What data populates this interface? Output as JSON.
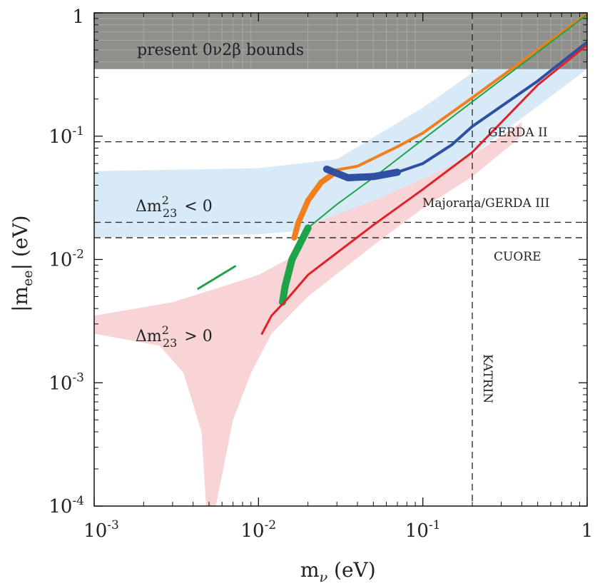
{
  "chart_data": {
    "type": "line",
    "title": "",
    "xlabel": "m_ν (eV)",
    "xlabel_main": "m",
    "xlabel_sub": "ν",
    "xlabel_units": " (eV)",
    "ylabel": "|m_ee| (eV)",
    "ylabel_main": "|m",
    "ylabel_sub": "ee",
    "ylabel_units": "| (eV)",
    "xscale": "log",
    "yscale": "log",
    "xlim": [
      0.001,
      1
    ],
    "ylim": [
      0.0001,
      1
    ],
    "xticks": [
      {
        "base": "10",
        "exp": "-3"
      },
      {
        "base": "10",
        "exp": "-2"
      },
      {
        "base": "10",
        "exp": "-1"
      },
      {
        "base": "1",
        "exp": ""
      }
    ],
    "yticks": [
      {
        "base": "10",
        "exp": "-4"
      },
      {
        "base": "10",
        "exp": "-3"
      },
      {
        "base": "10",
        "exp": "-2"
      },
      {
        "base": "10",
        "exp": "-1"
      },
      {
        "base": "1",
        "exp": ""
      }
    ],
    "excluded_region": {
      "label": "present 0ν2β bounds",
      "ymin": 0.35,
      "color": "#8f8f8c"
    },
    "region_labels": {
      "inverted": {
        "text": "Δm",
        "sup": "2",
        "sub": "23",
        "rel": "< 0"
      },
      "normal": {
        "text": "Δm",
        "sup": "2",
        "sub": "23",
        "rel": "> 0"
      }
    },
    "sensitivity_lines": [
      {
        "name": "GERDA II",
        "m_ee": 0.09,
        "orientation": "horizontal"
      },
      {
        "name": "Majorana/GERDA III",
        "m_ee": 0.02,
        "orientation": "horizontal"
      },
      {
        "name": "CUORE",
        "m_ee": 0.015,
        "orientation": "horizontal"
      },
      {
        "name": "KATRIN",
        "m_nu": 0.2,
        "orientation": "vertical"
      }
    ],
    "bands": [
      {
        "name": "inverted hierarchy (Δm²_23 < 0)",
        "color": "#d8eaf8",
        "upper": [
          [
            0.001,
            0.052
          ],
          [
            0.01,
            0.055
          ],
          [
            0.03,
            0.065
          ],
          [
            0.1,
            0.17
          ],
          [
            0.3,
            0.48
          ],
          [
            1,
            0.95
          ]
        ],
        "lower": [
          [
            1,
            0.35
          ],
          [
            0.3,
            0.105
          ],
          [
            0.1,
            0.035
          ],
          [
            0.03,
            0.018
          ],
          [
            0.01,
            0.016
          ],
          [
            0.001,
            0.015
          ]
        ]
      },
      {
        "name": "normal hierarchy (Δm²_23 > 0)",
        "color": "#f8d4d6",
        "upper": [
          [
            0.001,
            0.0035
          ],
          [
            0.003,
            0.0045
          ],
          [
            0.006,
            0.006
          ],
          [
            0.01,
            0.0075
          ],
          [
            0.015,
            0.01
          ],
          [
            0.02,
            0.019
          ],
          [
            0.05,
            0.03
          ],
          [
            0.1,
            0.045
          ],
          [
            0.2,
            0.07
          ],
          [
            0.4,
            0.13
          ]
        ],
        "lower": [
          [
            0.4,
            0.1
          ],
          [
            0.2,
            0.047
          ],
          [
            0.1,
            0.026
          ],
          [
            0.05,
            0.013
          ],
          [
            0.02,
            0.005
          ],
          [
            0.012,
            0.0025
          ],
          [
            0.009,
            0.0012
          ],
          [
            0.007,
            0.0005
          ],
          [
            0.0055,
            0.0001
          ],
          [
            0.0048,
            0.0001
          ],
          [
            0.0045,
            0.0004
          ],
          [
            0.0035,
            0.0012
          ],
          [
            0.0025,
            0.002
          ],
          [
            0.001,
            0.0025
          ]
        ]
      }
    ],
    "series": [
      {
        "name": "orange",
        "color": "#f07f1c",
        "width": 4,
        "points": [
          [
            0.027,
            0.052
          ],
          [
            0.04,
            0.057
          ],
          [
            0.07,
            0.082
          ],
          [
            0.1,
            0.106
          ],
          [
            0.2,
            0.205
          ],
          [
            0.5,
            0.5
          ],
          [
            1,
            0.98
          ]
        ],
        "branch": [
          [
            0.0165,
            0.015
          ],
          [
            0.0175,
            0.02
          ],
          [
            0.02,
            0.03
          ],
          [
            0.024,
            0.042
          ],
          [
            0.03,
            0.052
          ]
        ]
      },
      {
        "name": "green",
        "color": "#1fa34a",
        "width": 2,
        "points": [
          [
            0.014,
            0.0045
          ],
          [
            0.0145,
            0.006
          ],
          [
            0.016,
            0.01
          ],
          [
            0.02,
            0.018
          ],
          [
            0.03,
            0.028
          ],
          [
            0.05,
            0.046
          ],
          [
            0.1,
            0.094
          ],
          [
            0.2,
            0.19
          ],
          [
            0.5,
            0.48
          ],
          [
            1,
            0.97
          ]
        ],
        "thick_segment": [
          [
            0.014,
            0.0045
          ],
          [
            0.0145,
            0.006
          ],
          [
            0.016,
            0.01
          ],
          [
            0.02,
            0.018
          ]
        ],
        "island": [
          [
            0.0043,
            0.0058
          ],
          [
            0.0072,
            0.0088
          ]
        ]
      },
      {
        "name": "blue",
        "color": "#2f4fa1",
        "width": 4,
        "points": [
          [
            0.026,
            0.054
          ],
          [
            0.035,
            0.046
          ],
          [
            0.05,
            0.047
          ],
          [
            0.07,
            0.051
          ],
          [
            0.1,
            0.06
          ],
          [
            0.15,
            0.085
          ],
          [
            0.2,
            0.12
          ],
          [
            0.5,
            0.28
          ],
          [
            1,
            0.58
          ]
        ],
        "thick_segment": [
          [
            0.026,
            0.054
          ],
          [
            0.035,
            0.046
          ],
          [
            0.05,
            0.047
          ],
          [
            0.07,
            0.051
          ]
        ]
      },
      {
        "name": "red",
        "color": "#e02228",
        "width": 3,
        "points": [
          [
            0.0105,
            0.0025
          ],
          [
            0.012,
            0.0035
          ],
          [
            0.015,
            0.0048
          ],
          [
            0.02,
            0.0075
          ],
          [
            0.05,
            0.019
          ],
          [
            0.1,
            0.037
          ],
          [
            0.2,
            0.074
          ],
          [
            0.5,
            0.26
          ],
          [
            1,
            0.55
          ]
        ]
      }
    ]
  }
}
